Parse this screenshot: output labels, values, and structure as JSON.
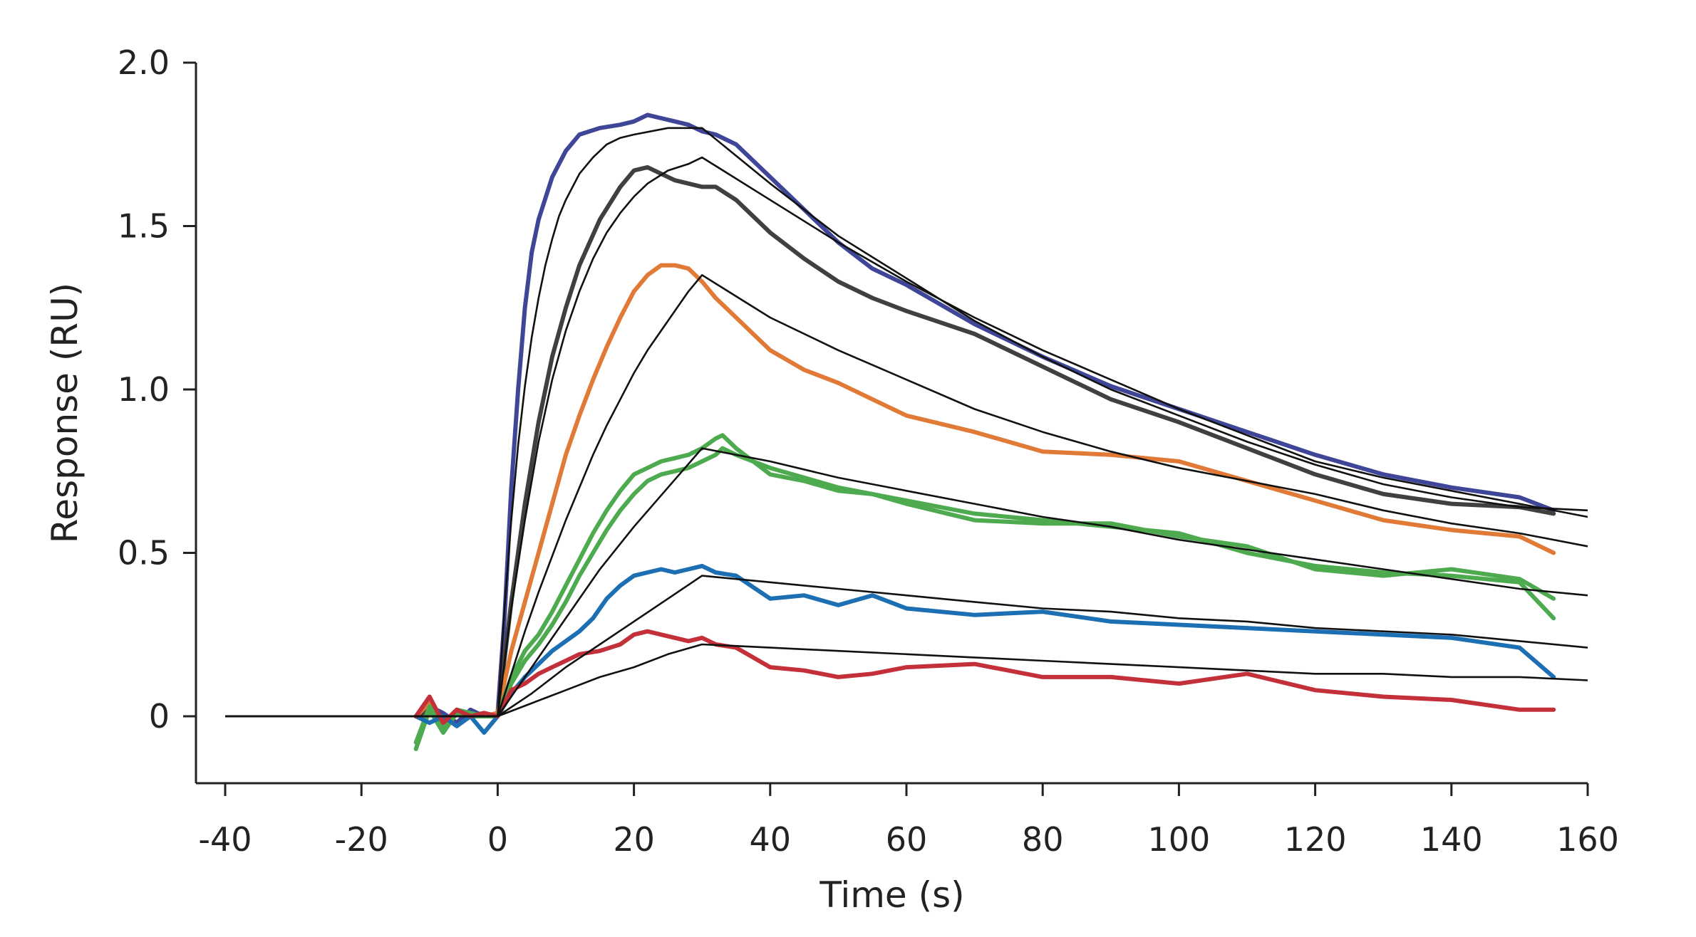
{
  "chart_data": {
    "type": "line",
    "xlabel": "Time (s)",
    "ylabel": "Response (RU)",
    "xlim": [
      -40,
      160
    ],
    "ylim": [
      -0.2,
      2.0
    ],
    "xticks": [
      -40,
      -20,
      0,
      20,
      40,
      60,
      80,
      100,
      120,
      140,
      160
    ],
    "xtick_labels": [
      "-40",
      "-20",
      "0",
      "20",
      "40",
      "60",
      "80",
      "100",
      "120",
      "140",
      "160"
    ],
    "yticks": [
      0,
      0.5,
      1.0,
      1.5,
      2.0
    ],
    "ytick_labels": [
      "0",
      "0.5",
      "1.0",
      "1.5",
      "2.0"
    ],
    "grid": false,
    "legend": "none",
    "series": [
      {
        "color": "#3f4597",
        "x": [
          -12,
          -10,
          -8,
          -6,
          -4,
          -2,
          0,
          1,
          2,
          3,
          4,
          5,
          6,
          8,
          10,
          12,
          15,
          18,
          20,
          22,
          24,
          26,
          28,
          30,
          32,
          35,
          40,
          45,
          50,
          55,
          60,
          70,
          80,
          90,
          100,
          110,
          120,
          130,
          140,
          150,
          155
        ],
        "y": [
          0.0,
          0.03,
          0.01,
          -0.02,
          0.02,
          0.0,
          0.01,
          0.3,
          0.7,
          1.0,
          1.25,
          1.42,
          1.52,
          1.65,
          1.73,
          1.78,
          1.8,
          1.81,
          1.82,
          1.84,
          1.83,
          1.82,
          1.81,
          1.79,
          1.78,
          1.75,
          1.65,
          1.55,
          1.45,
          1.37,
          1.32,
          1.2,
          1.1,
          1.01,
          0.94,
          0.87,
          0.8,
          0.74,
          0.7,
          0.67,
          0.63
        ]
      },
      {
        "color": "#404040",
        "x": [
          -12,
          -10,
          -8,
          -6,
          -4,
          -2,
          0,
          2,
          4,
          6,
          8,
          10,
          12,
          15,
          18,
          20,
          22,
          24,
          26,
          28,
          30,
          32,
          35,
          40,
          45,
          50,
          55,
          60,
          70,
          80,
          90,
          100,
          110,
          120,
          130,
          140,
          150,
          155
        ],
        "y": [
          0.0,
          0.02,
          -0.01,
          0.01,
          0.0,
          0.01,
          0.0,
          0.35,
          0.65,
          0.9,
          1.1,
          1.25,
          1.38,
          1.52,
          1.62,
          1.67,
          1.68,
          1.66,
          1.64,
          1.63,
          1.62,
          1.62,
          1.58,
          1.48,
          1.4,
          1.33,
          1.28,
          1.24,
          1.17,
          1.07,
          0.97,
          0.9,
          0.82,
          0.74,
          0.68,
          0.65,
          0.64,
          0.62
        ]
      },
      {
        "color": "#e07a36",
        "x": [
          -12,
          -10,
          -8,
          -6,
          -4,
          -2,
          0,
          2,
          4,
          6,
          8,
          10,
          12,
          14,
          16,
          18,
          20,
          22,
          24,
          26,
          28,
          30,
          32,
          35,
          40,
          45,
          50,
          55,
          60,
          70,
          80,
          90,
          100,
          110,
          120,
          130,
          140,
          150,
          155
        ],
        "y": [
          0.0,
          0.04,
          -0.02,
          0.02,
          0.0,
          0.0,
          0.01,
          0.2,
          0.35,
          0.5,
          0.65,
          0.8,
          0.92,
          1.03,
          1.13,
          1.22,
          1.3,
          1.35,
          1.38,
          1.38,
          1.37,
          1.33,
          1.28,
          1.22,
          1.12,
          1.06,
          1.02,
          0.97,
          0.92,
          0.87,
          0.81,
          0.8,
          0.78,
          0.72,
          0.66,
          0.6,
          0.57,
          0.55,
          0.5
        ]
      },
      {
        "color": "#4eaa4f",
        "x": [
          -12,
          -10,
          -8,
          -6,
          -4,
          -2,
          0,
          2,
          4,
          6,
          8,
          10,
          12,
          14,
          16,
          18,
          20,
          22,
          24,
          26,
          28,
          30,
          32,
          33,
          35,
          40,
          45,
          50,
          55,
          60,
          70,
          80,
          90,
          100,
          110,
          120,
          130,
          140,
          150,
          155
        ],
        "y": [
          -0.1,
          0.02,
          -0.05,
          0.01,
          0.0,
          0.0,
          0.0,
          0.12,
          0.2,
          0.25,
          0.32,
          0.4,
          0.48,
          0.56,
          0.63,
          0.69,
          0.74,
          0.76,
          0.78,
          0.79,
          0.8,
          0.82,
          0.85,
          0.86,
          0.82,
          0.74,
          0.72,
          0.69,
          0.68,
          0.66,
          0.62,
          0.6,
          0.58,
          0.56,
          0.5,
          0.46,
          0.44,
          0.43,
          0.41,
          0.3
        ]
      },
      {
        "color": "#4eaa4f",
        "x": [
          -12,
          -10,
          -8,
          -6,
          -4,
          -2,
          0,
          2,
          4,
          6,
          8,
          10,
          12,
          14,
          16,
          18,
          20,
          22,
          24,
          26,
          28,
          30,
          32,
          33,
          35,
          40,
          45,
          50,
          55,
          60,
          70,
          80,
          90,
          100,
          110,
          120,
          130,
          140,
          150,
          155
        ],
        "y": [
          -0.08,
          0.03,
          -0.04,
          0.02,
          0.01,
          0.0,
          0.0,
          0.1,
          0.17,
          0.22,
          0.28,
          0.35,
          0.43,
          0.5,
          0.57,
          0.63,
          0.68,
          0.72,
          0.74,
          0.75,
          0.76,
          0.78,
          0.8,
          0.82,
          0.8,
          0.76,
          0.73,
          0.7,
          0.68,
          0.65,
          0.6,
          0.59,
          0.59,
          0.55,
          0.52,
          0.45,
          0.43,
          0.45,
          0.42,
          0.36
        ]
      },
      {
        "color": "#1c6fb3",
        "x": [
          -12,
          -10,
          -8,
          -6,
          -4,
          -2,
          0,
          2,
          4,
          6,
          8,
          10,
          12,
          14,
          16,
          18,
          20,
          22,
          24,
          26,
          28,
          30,
          32,
          35,
          40,
          45,
          50,
          55,
          60,
          70,
          80,
          90,
          100,
          110,
          120,
          130,
          140,
          150,
          155
        ],
        "y": [
          0.0,
          -0.02,
          0.0,
          -0.03,
          0.0,
          -0.05,
          0.0,
          0.07,
          0.12,
          0.16,
          0.2,
          0.23,
          0.26,
          0.3,
          0.36,
          0.4,
          0.43,
          0.44,
          0.45,
          0.44,
          0.45,
          0.46,
          0.44,
          0.43,
          0.36,
          0.37,
          0.34,
          0.37,
          0.33,
          0.31,
          0.32,
          0.29,
          0.28,
          0.27,
          0.26,
          0.25,
          0.24,
          0.21,
          0.12
        ]
      },
      {
        "color": "#c3303a",
        "x": [
          -12,
          -10,
          -8,
          -6,
          -4,
          -2,
          0,
          2,
          4,
          6,
          8,
          10,
          12,
          15,
          18,
          20,
          22,
          24,
          26,
          28,
          30,
          32,
          35,
          40,
          45,
          50,
          55,
          60,
          70,
          80,
          90,
          100,
          110,
          120,
          130,
          140,
          150,
          155
        ],
        "y": [
          0.0,
          0.06,
          -0.02,
          0.02,
          0.0,
          0.01,
          0.0,
          0.08,
          0.1,
          0.13,
          0.15,
          0.17,
          0.19,
          0.2,
          0.22,
          0.25,
          0.26,
          0.25,
          0.24,
          0.23,
          0.24,
          0.22,
          0.21,
          0.15,
          0.14,
          0.12,
          0.13,
          0.15,
          0.16,
          0.12,
          0.12,
          0.1,
          0.13,
          0.08,
          0.06,
          0.05,
          0.02,
          0.02
        ]
      }
    ],
    "fits": [
      {
        "x": [
          -40,
          0,
          1,
          2,
          3,
          4,
          5,
          6,
          7,
          8,
          9,
          10,
          12,
          14,
          16,
          18,
          20,
          25,
          30,
          40,
          50,
          60,
          70,
          80,
          90,
          100,
          110,
          120,
          130,
          140,
          150,
          160
        ],
        "y": [
          0,
          0,
          0.33,
          0.6,
          0.83,
          1.01,
          1.16,
          1.28,
          1.38,
          1.46,
          1.53,
          1.58,
          1.66,
          1.71,
          1.75,
          1.77,
          1.78,
          1.8,
          1.8,
          1.63,
          1.47,
          1.34,
          1.21,
          1.1,
          1.0,
          0.92,
          0.84,
          0.77,
          0.71,
          0.67,
          0.64,
          0.63
        ]
      },
      {
        "x": [
          -40,
          0,
          2,
          4,
          6,
          8,
          10,
          12,
          14,
          16,
          18,
          20,
          22,
          25,
          28,
          30,
          40,
          50,
          60,
          70,
          80,
          90,
          100,
          110,
          120,
          130,
          140,
          150,
          160
        ],
        "y": [
          0,
          0,
          0.33,
          0.6,
          0.84,
          1.03,
          1.18,
          1.3,
          1.4,
          1.48,
          1.54,
          1.59,
          1.63,
          1.67,
          1.69,
          1.71,
          1.58,
          1.45,
          1.33,
          1.22,
          1.12,
          1.03,
          0.94,
          0.86,
          0.78,
          0.73,
          0.69,
          0.65,
          0.61
        ]
      },
      {
        "x": [
          -40,
          0,
          2,
          4,
          6,
          8,
          10,
          12,
          14,
          16,
          18,
          20,
          22,
          24,
          26,
          28,
          30,
          40,
          50,
          60,
          70,
          80,
          90,
          100,
          110,
          120,
          130,
          140,
          150,
          160
        ],
        "y": [
          0,
          0,
          0.13,
          0.26,
          0.38,
          0.49,
          0.6,
          0.7,
          0.8,
          0.89,
          0.97,
          1.05,
          1.12,
          1.18,
          1.24,
          1.3,
          1.35,
          1.22,
          1.12,
          1.03,
          0.94,
          0.87,
          0.81,
          0.76,
          0.72,
          0.68,
          0.63,
          0.59,
          0.56,
          0.52
        ]
      },
      {
        "x": [
          -40,
          0,
          5,
          10,
          15,
          20,
          25,
          30,
          40,
          50,
          60,
          70,
          80,
          90,
          100,
          110,
          120,
          130,
          140,
          150,
          160
        ],
        "y": [
          0,
          0,
          0.15,
          0.3,
          0.45,
          0.58,
          0.7,
          0.82,
          0.78,
          0.73,
          0.69,
          0.65,
          0.61,
          0.58,
          0.54,
          0.51,
          0.48,
          0.45,
          0.42,
          0.39,
          0.37
        ]
      },
      {
        "x": [
          -40,
          0,
          5,
          10,
          15,
          20,
          25,
          30,
          40,
          50,
          60,
          70,
          80,
          90,
          100,
          110,
          120,
          130,
          140,
          150,
          160
        ],
        "y": [
          0,
          0,
          0.07,
          0.15,
          0.22,
          0.29,
          0.36,
          0.43,
          0.41,
          0.39,
          0.37,
          0.35,
          0.33,
          0.32,
          0.3,
          0.29,
          0.27,
          0.26,
          0.25,
          0.23,
          0.21
        ]
      },
      {
        "x": [
          -40,
          0,
          5,
          10,
          15,
          20,
          25,
          30,
          40,
          50,
          60,
          70,
          80,
          90,
          100,
          110,
          120,
          130,
          140,
          150,
          160
        ],
        "y": [
          0,
          0,
          0.04,
          0.08,
          0.12,
          0.15,
          0.19,
          0.22,
          0.21,
          0.2,
          0.19,
          0.18,
          0.17,
          0.16,
          0.15,
          0.14,
          0.13,
          0.13,
          0.12,
          0.12,
          0.11
        ]
      }
    ]
  }
}
